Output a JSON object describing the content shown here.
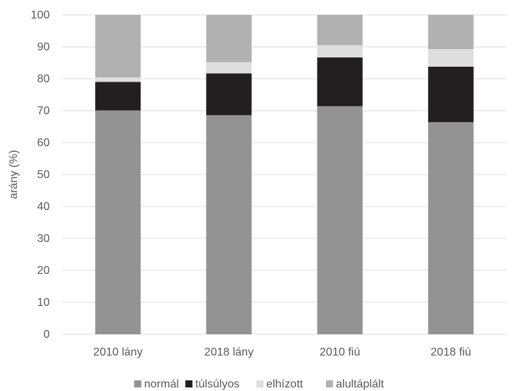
{
  "chart_data": {
    "type": "bar",
    "stacked": true,
    "categories": [
      "2010 lány",
      "2018 lány",
      "2010 fiú",
      "2018 fiú"
    ],
    "series": [
      {
        "name": "normál",
        "color": "#939393",
        "values": [
          70.1,
          68.6,
          71.4,
          66.4
        ]
      },
      {
        "name": "túlsúlyos",
        "color": "#231f20",
        "values": [
          8.9,
          13.1,
          15.3,
          17.4
        ]
      },
      {
        "name": "elhízott",
        "color": "#dedede",
        "values": [
          1.4,
          3.5,
          3.8,
          5.5
        ]
      },
      {
        "name": "alultáplált",
        "color": "#b1b1b1",
        "values": [
          19.6,
          14.8,
          9.5,
          10.7
        ]
      }
    ],
    "title": "",
    "xlabel": "",
    "ylabel": "arány (%)",
    "ylim": [
      0,
      100
    ],
    "yticks": [
      0,
      10,
      20,
      30,
      40,
      50,
      60,
      70,
      80,
      90,
      100
    ],
    "grid": true,
    "legend": "bottom"
  }
}
